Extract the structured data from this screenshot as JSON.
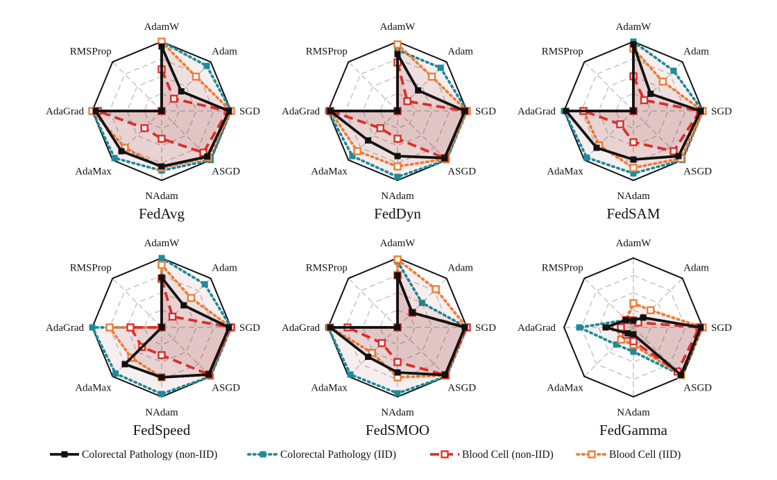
{
  "chart_data": [
    {
      "type": "radar",
      "title": "FedAvg",
      "axes": [
        "AdamW",
        "Adam",
        "SGD",
        "ASGD",
        "NAdam",
        "AdaMax",
        "AdaGrad",
        "RMSProp"
      ],
      "range": [
        0,
        1
      ],
      "grid": true,
      "series": [
        {
          "name": "Colorectal Pathology (non-IID)",
          "values": [
            0.93,
            0.4,
            0.97,
            0.93,
            0.8,
            0.82,
            0.95,
            0.0
          ]
        },
        {
          "name": "Colorectal Pathology (IID)",
          "values": [
            1.0,
            0.92,
            1.0,
            1.0,
            0.86,
            0.96,
            1.0,
            0.0
          ]
        },
        {
          "name": "Blood Cell (non-IID)",
          "values": [
            0.6,
            0.25,
            0.95,
            0.85,
            0.4,
            0.35,
            0.92,
            0.0
          ]
        },
        {
          "name": "Blood Cell (IID)",
          "values": [
            1.0,
            0.7,
            1.0,
            0.95,
            0.82,
            0.75,
            1.0,
            0.0
          ]
        }
      ]
    },
    {
      "type": "radar",
      "title": "FedDyn",
      "axes": [
        "AdamW",
        "Adam",
        "SGD",
        "ASGD",
        "NAdam",
        "AdaMax",
        "AdaGrad",
        "RMSProp"
      ],
      "range": [
        0,
        1
      ],
      "grid": true,
      "series": [
        {
          "name": "Colorectal Pathology (non-IID)",
          "values": [
            0.82,
            0.42,
            0.97,
            0.96,
            0.65,
            0.6,
            0.97,
            0.0
          ]
        },
        {
          "name": "Colorectal Pathology (IID)",
          "values": [
            0.88,
            0.88,
            1.0,
            1.0,
            0.95,
            0.92,
            1.0,
            0.0
          ]
        },
        {
          "name": "Blood Cell (non-IID)",
          "values": [
            0.7,
            0.2,
            0.97,
            0.96,
            0.4,
            0.35,
            0.97,
            0.0
          ]
        },
        {
          "name": "Blood Cell (IID)",
          "values": [
            0.96,
            0.7,
            1.0,
            0.98,
            0.8,
            0.82,
            0.97,
            0.0
          ]
        }
      ]
    },
    {
      "type": "radar",
      "title": "FedSAM",
      "axes": [
        "AdamW",
        "Adam",
        "SGD",
        "ASGD",
        "NAdam",
        "AdaMax",
        "AdaGrad",
        "RMSProp"
      ],
      "range": [
        0,
        1
      ],
      "grid": true,
      "series": [
        {
          "name": "Colorectal Pathology (non-IID)",
          "values": [
            0.96,
            0.35,
            0.97,
            0.92,
            0.7,
            0.75,
            0.97,
            0.0
          ]
        },
        {
          "name": "Colorectal Pathology (IID)",
          "values": [
            1.0,
            0.82,
            1.0,
            1.0,
            0.9,
            0.95,
            1.0,
            0.0
          ]
        },
        {
          "name": "Blood Cell (non-IID)",
          "values": [
            0.5,
            0.22,
            0.96,
            0.82,
            0.45,
            0.27,
            0.72,
            0.0
          ]
        },
        {
          "name": "Blood Cell (IID)",
          "values": [
            0.9,
            0.6,
            1.0,
            0.97,
            0.82,
            0.7,
            0.72,
            0.0
          ]
        }
      ]
    },
    {
      "type": "radar",
      "title": "FedSpeed",
      "axes": [
        "AdamW",
        "Adam",
        "SGD",
        "ASGD",
        "NAdam",
        "AdaMax",
        "AdaGrad",
        "RMSProp"
      ],
      "range": [
        0,
        1
      ],
      "grid": true,
      "series": [
        {
          "name": "Colorectal Pathology (non-IID)",
          "values": [
            0.72,
            0.45,
            0.97,
            0.96,
            0.72,
            0.75,
            0.0,
            0.0
          ]
        },
        {
          "name": "Colorectal Pathology (IID)",
          "values": [
            1.0,
            0.88,
            1.0,
            1.0,
            0.96,
            0.94,
            1.0,
            0.0
          ]
        },
        {
          "name": "Blood Cell (non-IID)",
          "values": [
            0.7,
            0.22,
            1.0,
            0.96,
            0.4,
            0.4,
            0.45,
            0.0
          ]
        },
        {
          "name": "Blood Cell (IID)",
          "values": [
            0.9,
            0.6,
            1.0,
            0.97,
            0.72,
            0.62,
            0.75,
            0.0
          ]
        }
      ]
    },
    {
      "type": "radar",
      "title": "FedSMOO",
      "axes": [
        "AdamW",
        "Adam",
        "SGD",
        "ASGD",
        "NAdam",
        "AdaMax",
        "AdaGrad",
        "RMSProp"
      ],
      "range": [
        0,
        1
      ],
      "grid": true,
      "series": [
        {
          "name": "Colorectal Pathology (non-IID)",
          "values": [
            0.75,
            0.3,
            0.97,
            0.97,
            0.65,
            0.6,
            0.97,
            0.0
          ]
        },
        {
          "name": "Colorectal Pathology (IID)",
          "values": [
            0.95,
            0.5,
            1.0,
            1.0,
            0.95,
            0.96,
            1.0,
            0.0
          ]
        },
        {
          "name": "Blood Cell (non-IID)",
          "values": [
            0.75,
            0.3,
            1.0,
            0.97,
            0.5,
            0.32,
            0.72,
            0.0
          ]
        },
        {
          "name": "Blood Cell (IID)",
          "values": [
            0.98,
            0.78,
            1.0,
            0.98,
            0.72,
            0.52,
            0.97,
            0.0
          ]
        }
      ]
    },
    {
      "type": "radar",
      "title": "FedGamma",
      "axes": [
        "AdamW",
        "Adam",
        "SGD",
        "ASGD",
        "NAdam",
        "AdaMax",
        "AdaGrad",
        "RMSProp"
      ],
      "range": [
        0,
        1
      ],
      "grid": true,
      "series": [
        {
          "name": "Colorectal Pathology (non-IID)",
          "values": [
            0.1,
            0.2,
            0.97,
            0.97,
            0.1,
            0.12,
            0.4,
            0.15
          ]
        },
        {
          "name": "Colorectal Pathology (IID)",
          "values": [
            0.1,
            0.2,
            0.97,
            0.97,
            0.35,
            0.35,
            0.78,
            0.15
          ]
        },
        {
          "name": "Blood Cell (non-IID)",
          "values": [
            0.1,
            0.1,
            0.95,
            0.9,
            0.2,
            0.15,
            0.18,
            0.15
          ]
        },
        {
          "name": "Blood Cell (IID)",
          "values": [
            0.35,
            0.35,
            1.0,
            0.97,
            0.25,
            0.25,
            0.25,
            0.15
          ]
        }
      ]
    }
  ],
  "legend": {
    "placement": "bottom",
    "items": [
      {
        "label": "Colorectal Pathology (non-IID)",
        "color": "#111111",
        "style": "solid",
        "marker": "filled-square"
      },
      {
        "label": "Colorectal Pathology (IID)",
        "color": "#1f8a9a",
        "style": "dotted",
        "marker": "filled-square"
      },
      {
        "label": "Blood Cell (non-IID)",
        "color": "#e0302c",
        "style": "dashed",
        "marker": "open-square"
      },
      {
        "label": "Blood Cell (IID)",
        "color": "#ee7d36",
        "style": "dotted",
        "marker": "open-square"
      }
    ]
  },
  "fill_color": "#8b1a1a"
}
